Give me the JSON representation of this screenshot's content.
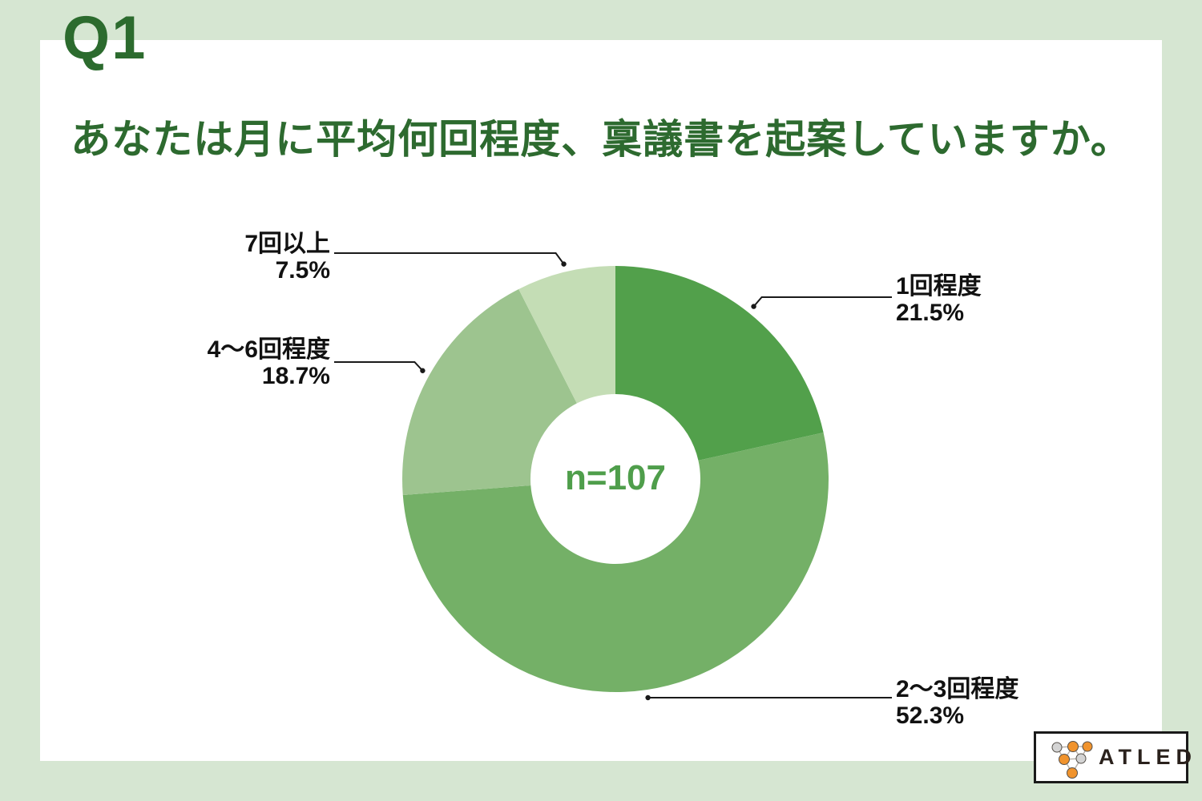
{
  "page": {
    "question_number": "Q1",
    "title": "あなたは月に平均何回程度、稟議書を起案していますか。",
    "background_color": "#d6e6d2",
    "panel_color": "#ffffff",
    "heading_color": "#2d6a2f"
  },
  "chart_data": {
    "type": "pie",
    "subtype": "donut",
    "title": "あなたは月に平均何回程度、稟議書を起案していますか。",
    "unit": "%",
    "direction": "clockwise",
    "start_angle_deg": 0,
    "center_label": "n=107",
    "sample_size": 107,
    "center_label_color": "#4f9e4b",
    "leader_line_color": "#1a1a1a",
    "label_text_color": "#111111",
    "segments": [
      {
        "label": "1回程度",
        "value": 21.5,
        "display": "21.5%",
        "color": "#52a04b"
      },
      {
        "label": "2〜3回程度",
        "value": 52.3,
        "display": "52.3%",
        "color": "#74b067"
      },
      {
        "label": "4〜6回程度",
        "value": 18.7,
        "display": "18.7%",
        "color": "#9dc48f"
      },
      {
        "label": "7回以上",
        "value": 7.5,
        "display": "7.5%",
        "color": "#c4ddb5"
      }
    ]
  },
  "logo": {
    "text": "ATLED",
    "text_color": "#2a211c",
    "node_orange": "#f0932d",
    "node_gray": "#d4d4d4"
  }
}
